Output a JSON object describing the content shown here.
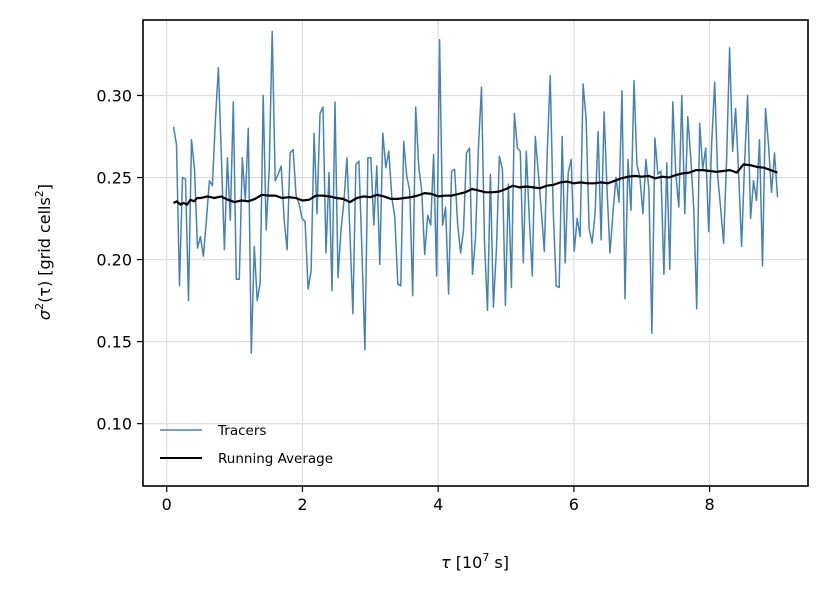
{
  "chart_data": {
    "type": "line",
    "title": "",
    "xlabel": {
      "sym": "τ",
      "pre": " [10",
      "sup": "7",
      "post": " s]"
    },
    "ylabel": {
      "sym": "σ",
      "sup1": "2",
      "mid": "(τ) [grid cells",
      "sup2": "2",
      "post": "]"
    },
    "xlim": [
      -0.35,
      9.45
    ],
    "ylim": [
      0.062,
      0.346
    ],
    "x_ticks": [
      0,
      2,
      4,
      6,
      8
    ],
    "x_tick_labels": [
      "0",
      "2",
      "4",
      "6",
      "8"
    ],
    "y_ticks": [
      0.1,
      0.15,
      0.2,
      0.25,
      0.3
    ],
    "y_tick_labels": [
      "0.10",
      "0.15",
      "0.20",
      "0.25",
      "0.30"
    ],
    "grid": true,
    "legend_position": "lower-left",
    "series": [
      {
        "name": "Tracers",
        "color": "#4682b4",
        "x_start": 0.1,
        "x_end": 9.0,
        "values": [
          0.281,
          0.27,
          0.184,
          0.25,
          0.249,
          0.175,
          0.273,
          0.255,
          0.207,
          0.214,
          0.202,
          0.224,
          0.248,
          0.245,
          0.285,
          0.317,
          0.262,
          0.206,
          0.262,
          0.224,
          0.296,
          0.188,
          0.188,
          0.262,
          0.236,
          0.28,
          0.143,
          0.208,
          0.175,
          0.186,
          0.3,
          0.218,
          0.255,
          0.339,
          0.248,
          0.252,
          0.257,
          0.224,
          0.206,
          0.265,
          0.267,
          0.239,
          0.234,
          0.225,
          0.223,
          0.182,
          0.193,
          0.277,
          0.228,
          0.289,
          0.293,
          0.204,
          0.253,
          0.181,
          0.296,
          0.189,
          0.218,
          0.236,
          0.262,
          0.217,
          0.167,
          0.258,
          0.26,
          0.206,
          0.145,
          0.262,
          0.262,
          0.221,
          0.257,
          0.197,
          0.277,
          0.256,
          0.266,
          0.238,
          0.226,
          0.185,
          0.184,
          0.272,
          0.251,
          0.242,
          0.178,
          0.293,
          0.257,
          0.242,
          0.203,
          0.227,
          0.221,
          0.264,
          0.19,
          0.334,
          0.221,
          0.232,
          0.179,
          0.254,
          0.255,
          0.222,
          0.204,
          0.218,
          0.265,
          0.268,
          0.191,
          0.213,
          0.269,
          0.305,
          0.211,
          0.169,
          0.252,
          0.171,
          0.206,
          0.263,
          0.255,
          0.172,
          0.246,
          0.183,
          0.289,
          0.268,
          0.266,
          0.198,
          0.266,
          0.225,
          0.19,
          0.275,
          0.253,
          0.23,
          0.205,
          0.266,
          0.312,
          0.23,
          0.184,
          0.183,
          0.275,
          0.198,
          0.253,
          0.261,
          0.205,
          0.225,
          0.214,
          0.307,
          0.286,
          0.219,
          0.21,
          0.228,
          0.278,
          0.212,
          0.29,
          0.243,
          0.204,
          0.229,
          0.25,
          0.235,
          0.303,
          0.176,
          0.261,
          0.23,
          0.309,
          0.258,
          0.25,
          0.228,
          0.261,
          0.243,
          0.155,
          0.274,
          0.252,
          0.254,
          0.191,
          0.259,
          0.194,
          0.296,
          0.252,
          0.232,
          0.3,
          0.228,
          0.287,
          0.262,
          0.23,
          0.17,
          0.283,
          0.255,
          0.268,
          0.217,
          0.271,
          0.308,
          0.251,
          0.231,
          0.21,
          0.261,
          0.329,
          0.266,
          0.292,
          0.253,
          0.208,
          0.259,
          0.3,
          0.225,
          0.248,
          0.236,
          0.273,
          0.196,
          0.292,
          0.27,
          0.241,
          0.265,
          0.238
        ]
      },
      {
        "name": "Running Average",
        "color": "#000000",
        "points": [
          [
            0.1,
            0.2345
          ],
          [
            0.15,
            0.2355
          ],
          [
            0.2,
            0.2335
          ],
          [
            0.25,
            0.2345
          ],
          [
            0.3,
            0.2335
          ],
          [
            0.35,
            0.2365
          ],
          [
            0.4,
            0.2355
          ],
          [
            0.45,
            0.2375
          ],
          [
            0.5,
            0.2375
          ],
          [
            0.6,
            0.2385
          ],
          [
            0.7,
            0.2375
          ],
          [
            0.8,
            0.2385
          ],
          [
            0.9,
            0.2365
          ],
          [
            1.0,
            0.235
          ],
          [
            1.1,
            0.236
          ],
          [
            1.2,
            0.2355
          ],
          [
            1.3,
            0.237
          ],
          [
            1.4,
            0.2395
          ],
          [
            1.5,
            0.239
          ],
          [
            1.6,
            0.239
          ],
          [
            1.7,
            0.2375
          ],
          [
            1.8,
            0.238
          ],
          [
            1.9,
            0.2375
          ],
          [
            2.0,
            0.236
          ],
          [
            2.1,
            0.2365
          ],
          [
            2.2,
            0.239
          ],
          [
            2.3,
            0.239
          ],
          [
            2.4,
            0.2385
          ],
          [
            2.5,
            0.2375
          ],
          [
            2.6,
            0.237
          ],
          [
            2.7,
            0.235
          ],
          [
            2.8,
            0.2375
          ],
          [
            2.9,
            0.2385
          ],
          [
            3.0,
            0.238
          ],
          [
            3.1,
            0.2395
          ],
          [
            3.2,
            0.2385
          ],
          [
            3.3,
            0.237
          ],
          [
            3.4,
            0.237
          ],
          [
            3.5,
            0.2375
          ],
          [
            3.6,
            0.238
          ],
          [
            3.7,
            0.239
          ],
          [
            3.8,
            0.2405
          ],
          [
            3.9,
            0.24
          ],
          [
            4.0,
            0.2385
          ],
          [
            4.1,
            0.239
          ],
          [
            4.2,
            0.239
          ],
          [
            4.3,
            0.24
          ],
          [
            4.4,
            0.241
          ],
          [
            4.5,
            0.243
          ],
          [
            4.6,
            0.242
          ],
          [
            4.7,
            0.241
          ],
          [
            4.8,
            0.241
          ],
          [
            4.9,
            0.2415
          ],
          [
            5.0,
            0.243
          ],
          [
            5.1,
            0.245
          ],
          [
            5.2,
            0.244
          ],
          [
            5.3,
            0.2445
          ],
          [
            5.4,
            0.244
          ],
          [
            5.5,
            0.2435
          ],
          [
            5.6,
            0.245
          ],
          [
            5.7,
            0.2455
          ],
          [
            5.8,
            0.247
          ],
          [
            5.9,
            0.2475
          ],
          [
            6.0,
            0.2465
          ],
          [
            6.1,
            0.247
          ],
          [
            6.2,
            0.2465
          ],
          [
            6.3,
            0.2465
          ],
          [
            6.4,
            0.247
          ],
          [
            6.5,
            0.2465
          ],
          [
            6.6,
            0.248
          ],
          [
            6.7,
            0.2495
          ],
          [
            6.8,
            0.2505
          ],
          [
            6.9,
            0.251
          ],
          [
            7.0,
            0.2505
          ],
          [
            7.1,
            0.251
          ],
          [
            7.2,
            0.2495
          ],
          [
            7.3,
            0.2505
          ],
          [
            7.4,
            0.25
          ],
          [
            7.5,
            0.2515
          ],
          [
            7.6,
            0.2525
          ],
          [
            7.7,
            0.253
          ],
          [
            7.8,
            0.2545
          ],
          [
            7.9,
            0.2545
          ],
          [
            8.0,
            0.254
          ],
          [
            8.1,
            0.2535
          ],
          [
            8.2,
            0.254
          ],
          [
            8.3,
            0.2545
          ],
          [
            8.4,
            0.253
          ],
          [
            8.5,
            0.258
          ],
          [
            8.6,
            0.2575
          ],
          [
            8.7,
            0.2565
          ],
          [
            8.8,
            0.256
          ],
          [
            8.9,
            0.2545
          ],
          [
            9.0,
            0.253
          ]
        ]
      }
    ]
  }
}
